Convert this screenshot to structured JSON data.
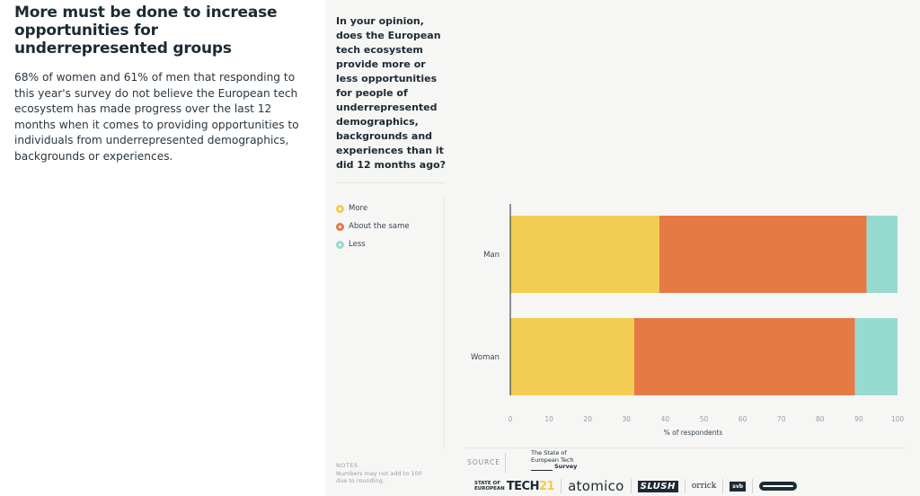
{
  "article": {
    "headline": "More must be done to increase opportunities for underrepresented groups",
    "body": "68% of women and 61% of men that responding to this year's survey do not believe the European tech ecosystem has made progress over the last 12 months when it comes to providing opportunities to individuals from underrepresented demographics, backgrounds or experiences."
  },
  "panel": {
    "question": "In your opinion, does the European tech ecosystem provide more or less opportunities for people of underrepresented demographics, backgrounds and experiences than it did 12 months ago?"
  },
  "legend": [
    {
      "label": "More",
      "color": "#f2cd52"
    },
    {
      "label": "About the same",
      "color": "#e57a45"
    },
    {
      "label": "Less",
      "color": "#97dbd0"
    }
  ],
  "chart_data": {
    "type": "bar",
    "orientation": "horizontal",
    "stacked": true,
    "categories": [
      "Man",
      "Woman"
    ],
    "series": [
      {
        "name": "More",
        "color": "#f2cd52",
        "values": [
          38.5,
          32
        ]
      },
      {
        "name": "About the same",
        "color": "#e57a45",
        "values": [
          53.5,
          57
        ]
      },
      {
        "name": "Less",
        "color": "#97dbd0",
        "values": [
          8,
          11
        ]
      }
    ],
    "xlabel": "% of respondents",
    "xlim": [
      0,
      100
    ],
    "xticks": [
      0,
      10,
      20,
      30,
      40,
      50,
      60,
      70,
      80,
      90,
      100
    ],
    "grid": false,
    "legend_position": "left"
  },
  "notes": {
    "title": "NOTES",
    "text": "Numbers may not add to 100 due to rounding."
  },
  "source": {
    "label": "SOURCE",
    "line1": "The State of",
    "line2": "European Tech",
    "line3": "Survey"
  },
  "logos": {
    "tech_small1": "STATE OF",
    "tech_small2": "EUROPEAN",
    "tech_main": "TECH",
    "tech_num": "21",
    "atomico": "atomico",
    "slush": "SLUSH",
    "orrick": "orrick",
    "svb": "svb"
  }
}
